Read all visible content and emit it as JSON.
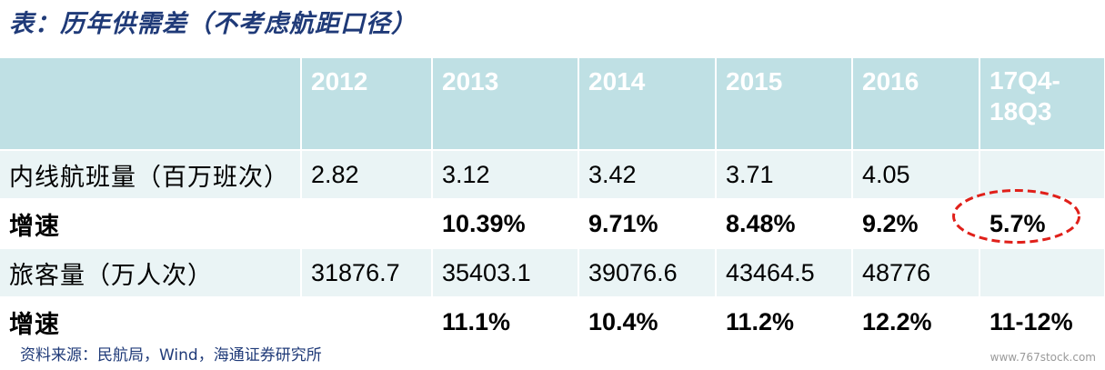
{
  "title": "表：历年供需差（不考虑航距口径）",
  "table": {
    "headers": [
      "",
      "2012",
      "2013",
      "2014",
      "2015",
      "2016",
      "17Q4-18Q3"
    ],
    "rows": [
      {
        "label": "内线航班量（百万班次）",
        "cells": [
          "2.82",
          "3.12",
          "3.42",
          "3.71",
          "4.05",
          ""
        ]
      },
      {
        "label": "增速",
        "cells": [
          "",
          "10.39%",
          "9.71%",
          "8.48%",
          "9.2%",
          "5.7%"
        ]
      },
      {
        "label": "旅客量（万人次）",
        "cells": [
          "31876.7",
          "35403.1",
          "39076.6",
          "43464.5",
          "48776",
          ""
        ]
      },
      {
        "label": "增速",
        "cells": [
          "",
          "11.1%",
          "10.4%",
          "11.2%",
          "12.2%",
          "11-12%"
        ]
      }
    ]
  },
  "highlight_color": "#e0201a",
  "source": "资料来源：民航局，Wind，海通证券研究所",
  "watermark": "www.767stock.com"
}
